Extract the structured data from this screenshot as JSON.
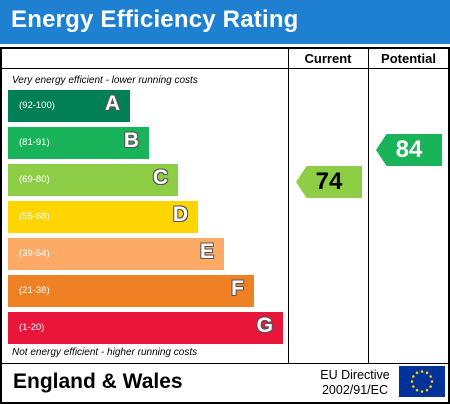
{
  "title": "Energy Efficiency Rating",
  "columns": {
    "current": "Current",
    "potential": "Potential"
  },
  "top_note": "Very energy efficient - lower running costs",
  "bottom_note": "Not energy efficient - higher running costs",
  "bands": [
    {
      "range": "(92-100)",
      "letter": "A",
      "color": "#008054"
    },
    {
      "range": "(81-91)",
      "letter": "B",
      "color": "#19b459"
    },
    {
      "range": "(69-80)",
      "letter": "C",
      "color": "#8dce46"
    },
    {
      "range": "(55-68)",
      "letter": "D",
      "color": "#ffd500"
    },
    {
      "range": "(39-54)",
      "letter": "E",
      "color": "#fcaa65"
    },
    {
      "range": "(21-38)",
      "letter": "F",
      "color": "#ef8023"
    },
    {
      "range": "(1-20)",
      "letter": "G",
      "color": "#e9153b"
    }
  ],
  "current_rating": {
    "value": "74",
    "band": "C",
    "color": "#8dce46"
  },
  "potential_rating": {
    "value": "84",
    "band": "B",
    "color": "#19b459"
  },
  "footer": {
    "region": "England & Wales",
    "directive_line1": "EU Directive",
    "directive_line2": "2002/91/EC"
  },
  "flag": {
    "color": "#003399",
    "star_color": "#ffcc00"
  }
}
